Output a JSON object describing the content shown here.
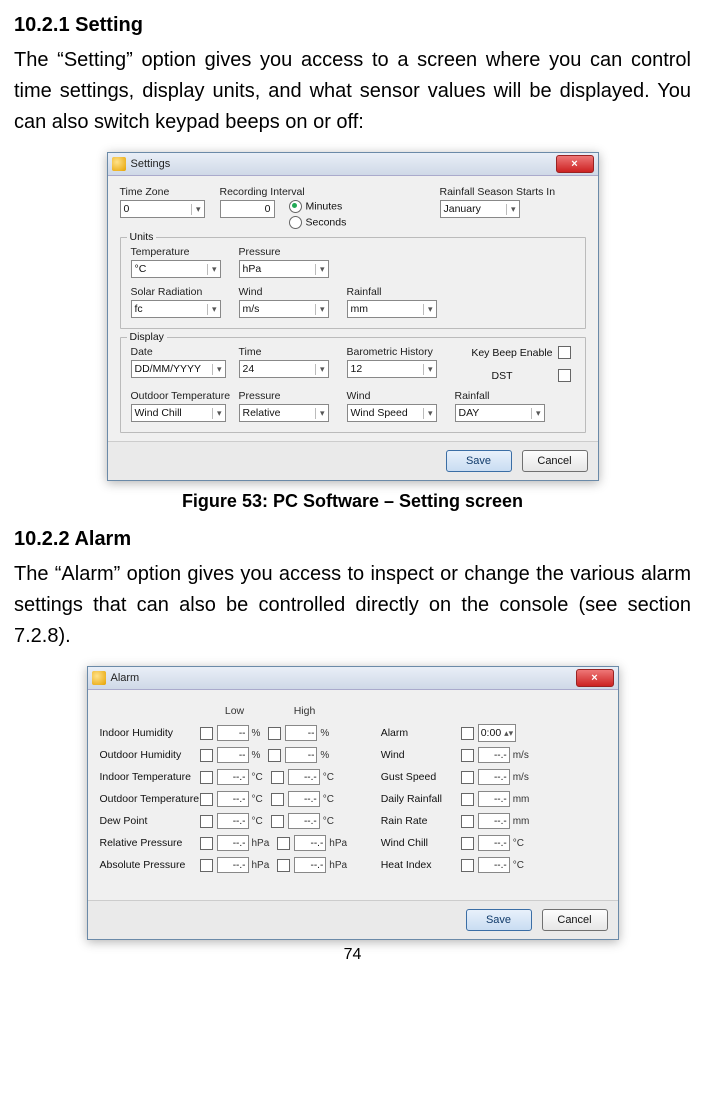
{
  "section1": {
    "num": "10.2.1",
    "title": "Setting"
  },
  "para1": "The “Setting” option gives you access to a screen where you can control time settings, display units, and what sensor values will be displayed. You can also switch keypad beeps on or off:",
  "settings": {
    "title": "Settings",
    "close": "×",
    "labels": {
      "timezone": "Time Zone",
      "recint": "Recording Interval",
      "minutes": "Minutes",
      "seconds": "Seconds",
      "rainseason": "Rainfall Season Starts In",
      "units": "Units",
      "temp": "Temperature",
      "press": "Pressure",
      "solar": "Solar Radiation",
      "wind": "Wind",
      "rain": "Rainfall",
      "display": "Display",
      "date": "Date",
      "time": "Time",
      "baro": "Barometric History",
      "keybeep": "Key Beep Enable",
      "dst": "DST",
      "outtemp": "Outdoor Temperature"
    },
    "values": {
      "timezone": "0",
      "recint": "0",
      "rainseason": "January",
      "temp": "°C",
      "press": "hPa",
      "solar": "fc",
      "wind": "m/s",
      "rain": "mm",
      "date": "DD/MM/YYYY",
      "time": "24",
      "baro": "12",
      "outtemp": "Wind Chill",
      "disp_press": "Relative",
      "disp_wind": "Wind Speed",
      "disp_rain": "DAY"
    },
    "save": "Save",
    "cancel": "Cancel"
  },
  "caption1": "Figure 53: PC Software – Setting screen",
  "section2": {
    "num": "10.2.2",
    "title": "Alarm"
  },
  "para2": "The “Alarm” option gives you access to inspect or change the various alarm settings that can also be controlled directly on the console (see section 7.2.8).",
  "alarm": {
    "title": "Alarm",
    "lowhdr": "Low",
    "highhdr": "High",
    "left": [
      {
        "name": "Indoor Humidity",
        "v": "--",
        "u": "%"
      },
      {
        "name": "Outdoor Humidity",
        "v": "--",
        "u": "%"
      },
      {
        "name": "Indoor Temperature",
        "v": "--.-",
        "u": "°C"
      },
      {
        "name": "Outdoor Temperature",
        "v": "--.-",
        "u": "°C"
      },
      {
        "name": "Dew Point",
        "v": "--.-",
        "u": "°C"
      },
      {
        "name": "Relative Pressure",
        "v": "--.-",
        "u": "hPa"
      },
      {
        "name": "Absolute Pressure",
        "v": "--.-",
        "u": "hPa"
      }
    ],
    "right": [
      {
        "name": "Alarm",
        "type": "time",
        "v": "0:00"
      },
      {
        "name": "Wind",
        "v": "--.-",
        "u": "m/s"
      },
      {
        "name": "Gust Speed",
        "v": "--.-",
        "u": "m/s"
      },
      {
        "name": "Daily Rainfall",
        "v": "--.-",
        "u": "mm"
      },
      {
        "name": "Rain Rate",
        "v": "--.-",
        "u": "mm"
      },
      {
        "name": "Wind Chill",
        "v": "--.-",
        "u": "°C"
      },
      {
        "name": "Heat Index",
        "v": "--.-",
        "u": "°C"
      }
    ],
    "save": "Save",
    "cancel": "Cancel"
  },
  "pagenum": "74"
}
